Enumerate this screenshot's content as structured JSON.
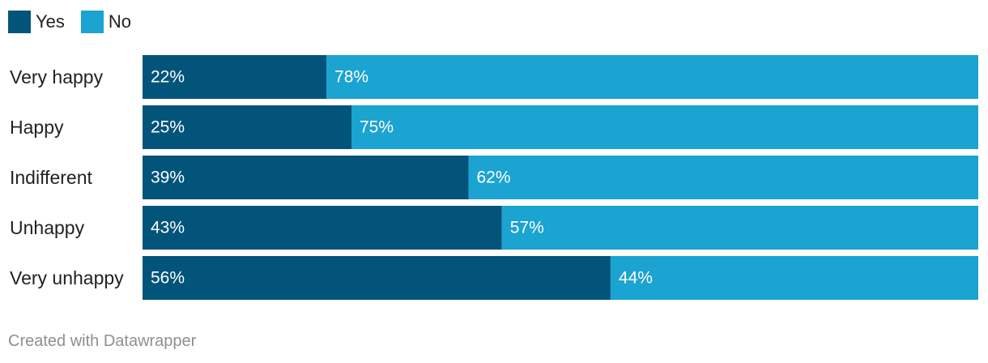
{
  "chart_data": {
    "type": "bar",
    "orientation": "horizontal",
    "stacked": true,
    "categories": [
      "Very happy",
      "Happy",
      "Indifferent",
      "Unhappy",
      "Very unhappy"
    ],
    "series": [
      {
        "name": "Yes",
        "color": "#03547a",
        "values": [
          22,
          25,
          39,
          43,
          56
        ],
        "labels": [
          "22%",
          "25%",
          "39%",
          "43%",
          "56%"
        ]
      },
      {
        "name": "No",
        "color": "#1ba3d1",
        "values": [
          78,
          75,
          62,
          57,
          44
        ],
        "labels": [
          "78%",
          "75%",
          "62%",
          "57%",
          "44%"
        ]
      }
    ],
    "xlim": [
      0,
      100
    ],
    "unit": "%",
    "legend_position": "top-left",
    "grid": false
  },
  "footer": {
    "credit": "Created with Datawrapper"
  }
}
